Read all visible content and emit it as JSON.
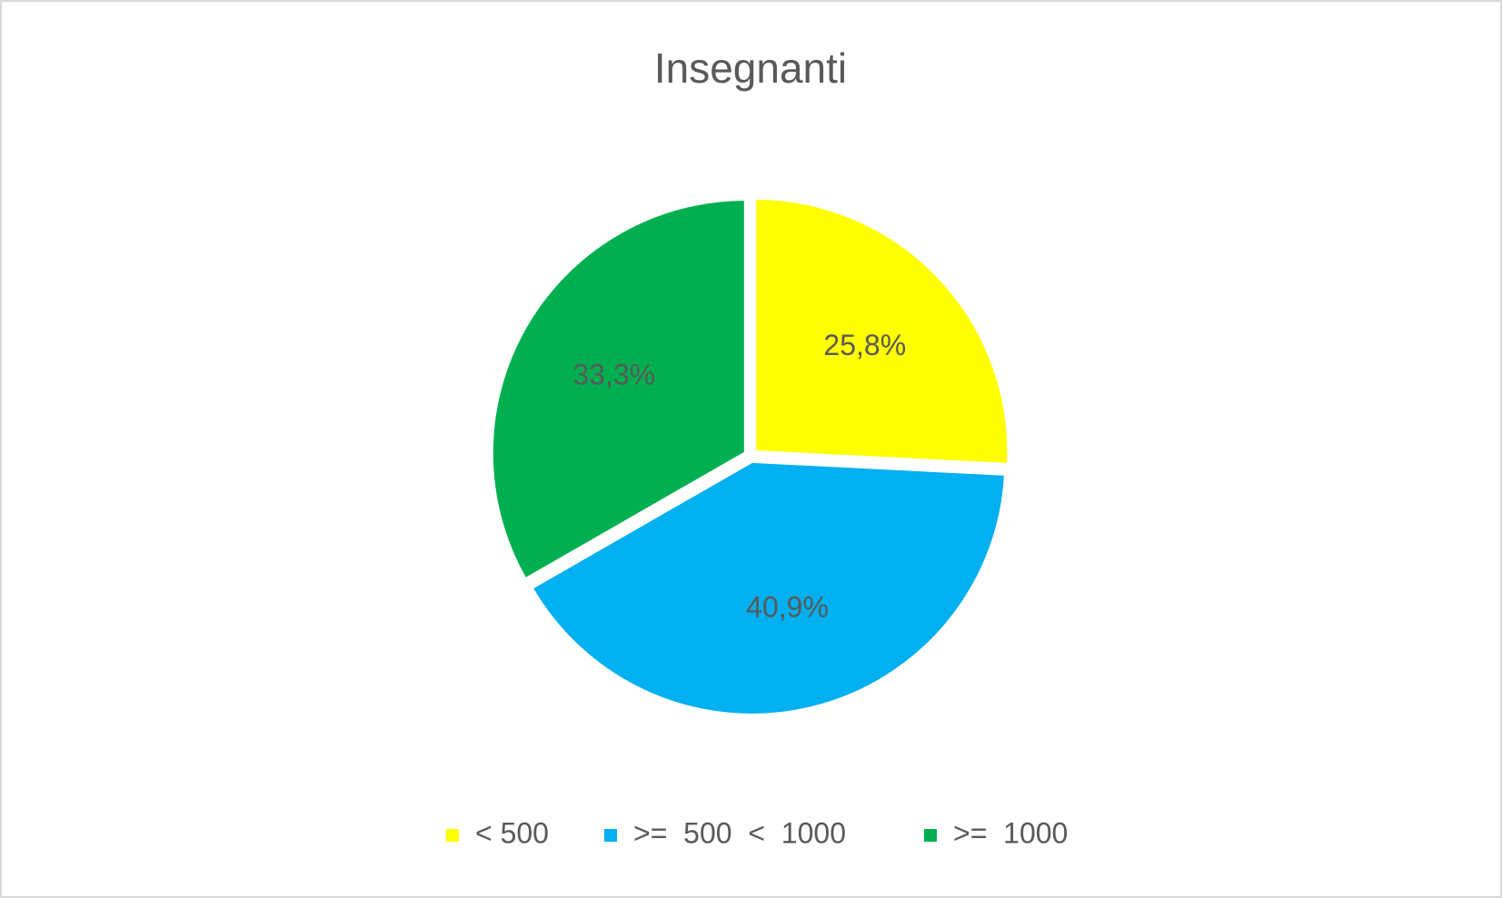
{
  "chart_data": {
    "type": "pie",
    "title": "Insegnanti",
    "categories": [
      "< 500",
      ">=  500  <  1000",
      ">=  1000"
    ],
    "values": [
      25.8,
      40.9,
      33.3
    ],
    "value_labels": [
      "25,8%",
      "40,9%",
      "33,3%"
    ],
    "colors": [
      "#ffff00",
      "#00b0f0",
      "#00b050"
    ],
    "legend": "bottom"
  }
}
